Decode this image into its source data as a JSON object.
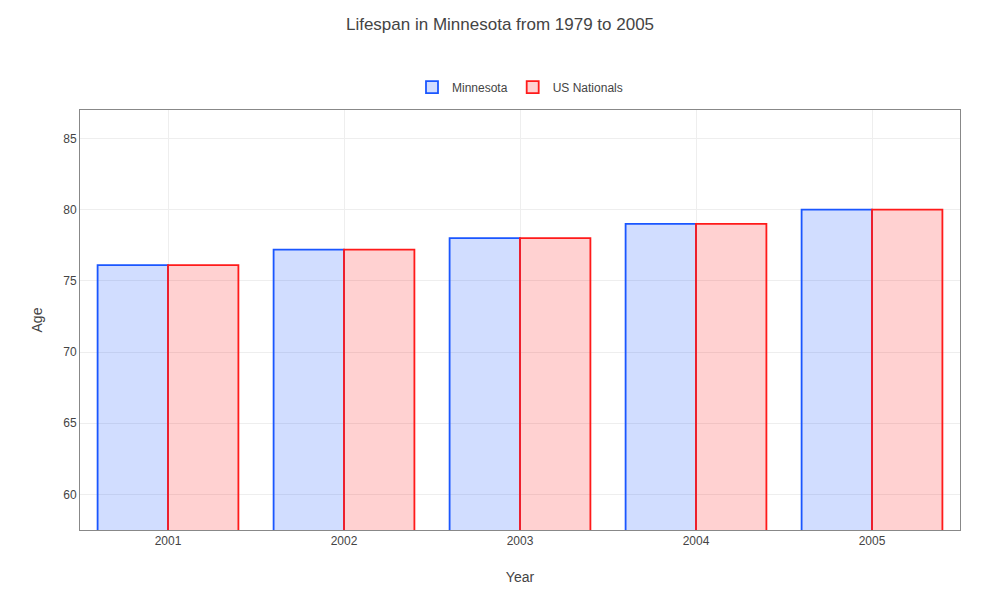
{
  "chart_data": {
    "type": "bar",
    "title": "Lifespan in Minnesota from 1979 to 2005",
    "xlabel": "Year",
    "ylabel": "Age",
    "categories": [
      "2001",
      "2002",
      "2003",
      "2004",
      "2005"
    ],
    "series": [
      {
        "name": "Minnesota",
        "color": "#1a56ff",
        "values": [
          76.1,
          77.2,
          78.0,
          79.0,
          80.0
        ]
      },
      {
        "name": "US Nationals",
        "color": "#ff1a1a",
        "values": [
          76.1,
          77.2,
          78.0,
          79.0,
          80.0
        ]
      }
    ],
    "ylim": [
      57.5,
      87
    ],
    "yticks": [
      60,
      65,
      70,
      75,
      80,
      85
    ],
    "grid": true,
    "legend": "top"
  }
}
